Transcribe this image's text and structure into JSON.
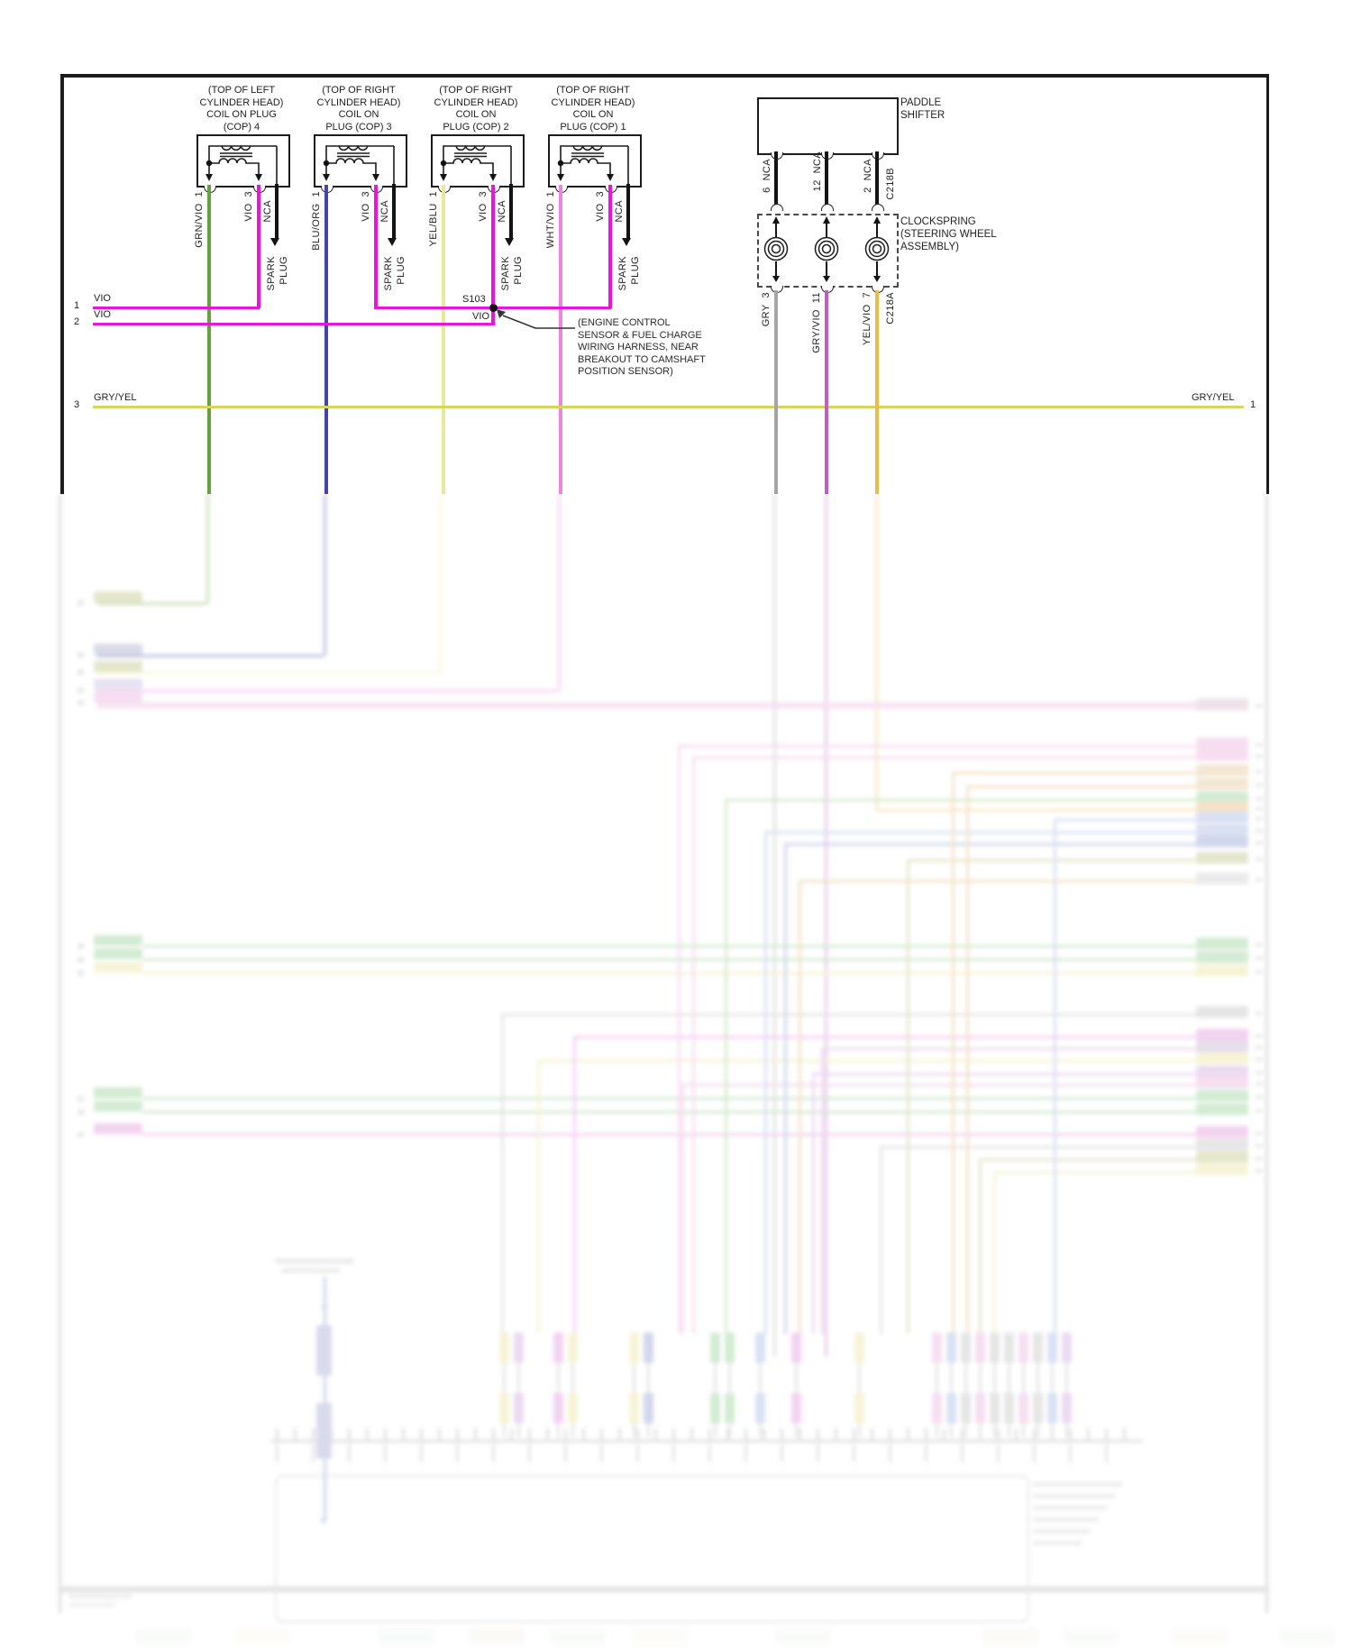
{
  "palette": {
    "vio": "#e716d8",
    "grn_vio": "#63a33c",
    "blu_org": "#4545a8",
    "yel_blu": "#eae896",
    "wht_vio": "#ee85e2",
    "gry": "#a6a6a6",
    "gry_vio": "#c05fc2",
    "yel_vio": "#eabd4a",
    "gry_yel": "#d6d65c",
    "nca_black": "#141414"
  },
  "cops": [
    {
      "name": "cop-4",
      "label_lines": [
        "(TOP OF LEFT",
        "CYLINDER HEAD)",
        "COIL ON PLUG",
        "(COP) 4"
      ],
      "pin1": {
        "num": "1",
        "wire": "GRN/VIO",
        "color_key": "grn_vio"
      },
      "pin3": {
        "num": "3",
        "wire": "VIO",
        "color_key": "vio"
      },
      "nca_wire": "NCA",
      "spark_lines": [
        "SPARK",
        "PLUG"
      ]
    },
    {
      "name": "cop-3",
      "label_lines": [
        "(TOP OF RIGHT",
        "CYLINDER HEAD)",
        "COIL ON",
        "PLUG (COP) 3"
      ],
      "pin1": {
        "num": "1",
        "wire": "BLU/ORG",
        "color_key": "blu_org"
      },
      "pin3": {
        "num": "3",
        "wire": "VIO",
        "color_key": "vio"
      },
      "nca_wire": "NCA",
      "spark_lines": [
        "SPARK",
        "PLUG"
      ]
    },
    {
      "name": "cop-2",
      "label_lines": [
        "(TOP OF RIGHT",
        "CYLINDER HEAD)",
        "COIL ON",
        "PLUG (COP) 2"
      ],
      "pin1": {
        "num": "1",
        "wire": "YEL/BLU",
        "color_key": "yel_blu"
      },
      "pin3": {
        "num": "3",
        "wire": "VIO",
        "color_key": "vio"
      },
      "nca_wire": "NCA",
      "spark_lines": [
        "SPARK",
        "PLUG"
      ]
    },
    {
      "name": "cop-1",
      "label_lines": [
        "(TOP OF RIGHT",
        "CYLINDER HEAD)",
        "COIL ON",
        "PLUG (COP) 1"
      ],
      "pin1": {
        "num": "1",
        "wire": "WHT/VIO",
        "color_key": "wht_vio"
      },
      "pin3": {
        "num": "3",
        "wire": "VIO",
        "color_key": "vio"
      },
      "nca_wire": "NCA",
      "spark_lines": [
        "SPARK",
        "PLUG"
      ]
    }
  ],
  "left_rows": [
    {
      "num": "1",
      "wire": "VIO"
    },
    {
      "num": "2",
      "wire": "VIO"
    },
    {
      "num": "3",
      "wire": "GRY/YEL"
    }
  ],
  "right_row": {
    "wire": "GRY/YEL",
    "num": "1"
  },
  "splice": {
    "id": "S103",
    "wire": "VIO",
    "note_lines": [
      "(ENGINE CONTROL",
      "SENSOR & FUEL CHARGE",
      "WIRING HARNESS, NEAR",
      "BREAKOUT TO CAMSHAFT",
      "POSITION SENSOR)"
    ]
  },
  "paddle_shifter": {
    "label_lines": [
      "PADDLE",
      "SHIFTER"
    ],
    "pins": [
      {
        "num": "6",
        "wire": "NCA"
      },
      {
        "num": "12",
        "wire": "NCA"
      },
      {
        "num": "2",
        "wire": "NCA"
      }
    ],
    "connector": "C218B"
  },
  "clockspring": {
    "label_lines": [
      "CLOCKSPRING",
      "(STEERING WHEEL",
      "ASSEMBLY)"
    ],
    "pins": [
      {
        "num": "3",
        "wire": "GRY",
        "color_key": "gry"
      },
      {
        "num": "11",
        "wire": "GRY/VIO",
        "color_key": "gry_vio"
      },
      {
        "num": "7",
        "wire": "YEL/VIO",
        "color_key": "yel_vio"
      }
    ],
    "connector": "C218A"
  }
}
